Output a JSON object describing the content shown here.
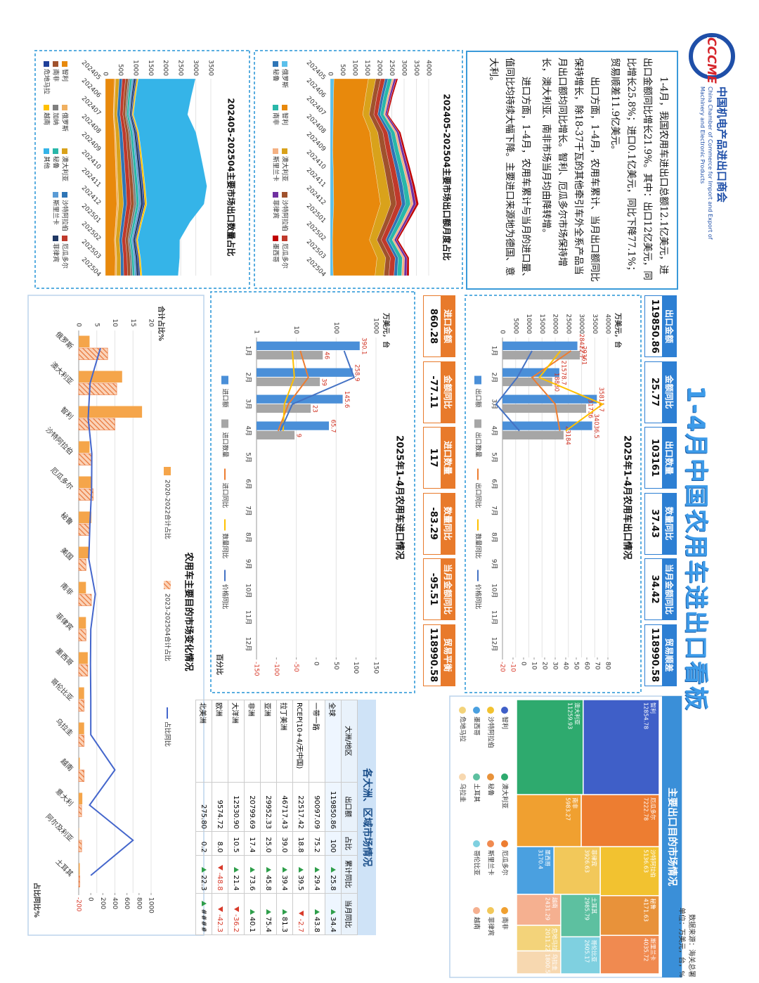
{
  "header": {
    "logo": "CCCME",
    "org_cn": "中国机电产品进出口商会",
    "org_en": "China Chamber of Commerce for Import and Export of Machinery and Electronic Products",
    "title": "1-4月中国农用车进出口看板",
    "source": "数据来源：海关总署",
    "unit": "单位：万美元，台，%"
  },
  "summary": [
    "1-4月，我国农用车进出口总额12.1亿美元，进出口金额同比增长21.9%。其中：出口12亿美元，同比增长25.8%；进口0.1亿美元，同比下降77.1%；贸易顺差11.9亿美元。",
    "出口方面，1-4月，农用车累计、当月出口额同比保持增长，除18-37千瓦的其他牵引车外全系产品当月出口额均同比增长。智利、厄瓜多尔市场保持增长，澳大利亚、南非市场当月均由降转增。",
    "进口方面，1-4月，农用车累计与当月的进口量、值同比均持续大幅下降。主要进口来源地为德国、意大利。"
  ],
  "export_kpis": [
    {
      "label": "出口金额",
      "value": 119850.86
    },
    {
      "label": "金额同比",
      "value": 25.77
    },
    {
      "label": "出口数量",
      "value": 103161
    },
    {
      "label": "数量同比",
      "value": 37.43
    },
    {
      "label": "当月金额同比",
      "value": 34.42
    },
    {
      "label": "贸易顺差",
      "value": 118990.58
    }
  ],
  "import_kpis": [
    {
      "label": "进口金额",
      "value": 860.28
    },
    {
      "label": "金额同比",
      "value": -77.11
    },
    {
      "label": "进口数量",
      "value": 117
    },
    {
      "label": "数量同比",
      "value": -83.29
    },
    {
      "label": "当月金额同比",
      "value": -95.51
    },
    {
      "label": "贸易平衡",
      "value": 118990.58
    }
  ],
  "region_table": {
    "title": "各大洲、区域市场情况",
    "columns": [
      "大洲/地区",
      "出口额",
      "占比",
      "累计同比",
      "当月同比"
    ],
    "rows": [
      [
        "全球",
        "119850.86",
        "100",
        "25.8",
        "34.4"
      ],
      [
        "一带一路",
        "90097.09",
        "75.2",
        "29.4",
        "43.8"
      ],
      [
        "RCEP(10+4/无中国)",
        "22517.42",
        "18.8",
        "39.5",
        "-2.7"
      ],
      [
        "拉丁美洲",
        "46717.43",
        "39.0",
        "39.4",
        "81.3"
      ],
      [
        "亚洲",
        "29952.33",
        "25.0",
        "45.8",
        "75.4"
      ],
      [
        "非洲",
        "20799.69",
        "17.4",
        "73.6",
        "40.1"
      ],
      [
        "大洋洲",
        "12530.90",
        "10.5",
        "21.4",
        "-36.2"
      ],
      [
        "欧洲",
        "9574.72",
        "8.0",
        "-48.8",
        "-42.3"
      ],
      [
        "北美洲",
        "275.80",
        "0.2",
        "22.3",
        "####"
      ]
    ]
  },
  "chart_data": [
    {
      "type": "combo",
      "title": "2025年1-4月农用车出口情况",
      "y_label": "万美元，台",
      "categories": [
        "1月",
        "2月",
        "3月",
        "4月",
        "5月",
        "6月",
        "7月",
        "8月",
        "9月",
        "10月",
        "11月",
        "12月"
      ],
      "ylim": [
        0,
        40000
      ],
      "yticks": [
        0,
        5000,
        10000,
        15000,
        20000,
        25000,
        30000,
        35000,
        40000
      ],
      "y2lim": [
        -20,
        80
      ],
      "y2ticks": [
        -20,
        -10,
        0,
        10,
        20,
        30,
        40,
        50,
        60,
        70,
        80
      ],
      "series": [
        {
          "name": "出口额",
          "kind": "bar",
          "labels": true,
          "color": "#4a8fd8",
          "values": [
            28422.7,
            21578.7,
            35811.7,
            34036.5,
            null,
            null,
            null,
            null,
            null,
            null,
            null,
            null
          ]
        },
        {
          "name": "出口数量",
          "kind": "bar",
          "labels": true,
          "color": "#a6a6a6",
          "values": [
            29361,
            18880,
            31736,
            23184,
            null,
            null,
            null,
            null,
            null,
            null,
            null,
            null
          ]
        },
        {
          "name": "出口同比",
          "kind": "line",
          "axis": "y2",
          "color": "#ed7d31",
          "values": [
            45,
            8,
            30,
            34.42,
            null,
            null,
            null,
            null,
            null,
            null,
            null,
            null
          ]
        },
        {
          "name": "数量同比",
          "kind": "line",
          "axis": "y2",
          "color": "#ffc000",
          "values": [
            35,
            15,
            75,
            40,
            null,
            null,
            null,
            null,
            null,
            null,
            null,
            null
          ]
        },
        {
          "name": "价格同比",
          "kind": "line",
          "axis": "y2",
          "color": "#4472c4",
          "values": [
            8,
            -6,
            -26,
            -4,
            null,
            null,
            null,
            null,
            null,
            null,
            null,
            null
          ]
        }
      ]
    },
    {
      "type": "combo",
      "title": "2025年1-4月农用车进口情况",
      "y_label": "万美元，台",
      "y2_label": "百分比",
      "log": true,
      "categories": [
        "1月",
        "2月",
        "3月",
        "4月",
        "5月",
        "6月",
        "7月",
        "8月",
        "9月",
        "10月",
        "11月",
        "12月"
      ],
      "ylim": [
        1,
        1000
      ],
      "yticks": [
        1,
        10,
        100,
        1000
      ],
      "y2lim": [
        -150,
        150
      ],
      "y2ticks": [
        -150,
        -100,
        -50,
        0,
        50,
        100,
        150
      ],
      "series": [
        {
          "name": "进口额",
          "kind": "bar",
          "labels": true,
          "color": "#4a8fd8",
          "values": [
            390.1,
            258.9,
            145.6,
            65.7,
            null,
            null,
            null,
            null,
            null,
            null,
            null,
            null
          ]
        },
        {
          "name": "进口数量",
          "kind": "bar",
          "labels": true,
          "color": "#a6a6a6",
          "values": [
            46,
            39,
            23,
            9,
            null,
            null,
            null,
            null,
            null,
            null,
            null,
            null
          ]
        },
        {
          "name": "进口同比",
          "kind": "line",
          "axis": "y2",
          "color": "#ed7d31",
          "values": [
            -40,
            -20,
            -70,
            -95.51,
            null,
            null,
            null,
            null,
            null,
            null,
            null,
            null
          ]
        },
        {
          "name": "数量同比",
          "kind": "line",
          "axis": "y2",
          "color": "#ffc000",
          "values": [
            -60,
            -55,
            -80,
            -83.29,
            null,
            null,
            null,
            null,
            null,
            null,
            null,
            null
          ]
        },
        {
          "name": "价格同比",
          "kind": "line",
          "axis": "y2",
          "color": "#4472c4",
          "values": [
            70,
            95,
            -60,
            -90,
            null,
            null,
            null,
            null,
            null,
            null,
            null,
            null
          ]
        }
      ]
    },
    {
      "type": "area",
      "title": "202405-202504主要市场出口额月度占比",
      "categories": [
        "202405",
        "202406",
        "202407",
        "202408",
        "202409",
        "202410",
        "202411",
        "202412",
        "202501",
        "202502",
        "202503",
        "202504"
      ],
      "ylim": [
        0,
        4000
      ],
      "yticks": [
        0,
        500,
        1000,
        1500,
        2000,
        2500,
        3000,
        3500,
        4000
      ],
      "series": [
        {
          "name": "俄罗斯",
          "color": "#5bc0eb",
          "values": [
            150,
            130,
            120,
            110,
            100,
            120,
            130,
            140,
            110,
            90,
            100,
            120
          ]
        },
        {
          "name": "智利",
          "color": "#e8890c",
          "values": [
            1400,
            1300,
            1200,
            1500,
            1600,
            1700,
            1800,
            1900,
            1700,
            1500,
            1800,
            1700
          ]
        },
        {
          "name": "澳大利亚",
          "color": "#d9a21b",
          "values": [
            300,
            280,
            260,
            320,
            350,
            380,
            400,
            420,
            380,
            300,
            350,
            360
          ]
        },
        {
          "name": "沙特阿拉伯",
          "color": "#a0522d",
          "values": [
            200,
            180,
            190,
            210,
            220,
            230,
            240,
            220,
            200,
            180,
            190,
            200
          ]
        },
        {
          "name": "厄瓜多尔",
          "color": "#c0392b",
          "values": [
            180,
            170,
            160,
            190,
            200,
            210,
            220,
            230,
            210,
            190,
            200,
            210
          ]
        },
        {
          "name": "秘鲁",
          "color": "#2e75b6",
          "values": [
            120,
            110,
            100,
            130,
            140,
            150,
            160,
            150,
            130,
            110,
            120,
            130
          ]
        },
        {
          "name": "南非",
          "color": "#2ab7a9",
          "values": [
            160,
            150,
            140,
            160,
            170,
            180,
            190,
            200,
            180,
            150,
            170,
            180
          ]
        },
        {
          "name": "斯里兰卡",
          "color": "#f4b183",
          "values": [
            80,
            70,
            60,
            80,
            90,
            90,
            100,
            110,
            90,
            80,
            90,
            100
          ]
        },
        {
          "name": "菲律宾",
          "color": "#7030a0",
          "values": [
            90,
            80,
            70,
            90,
            100,
            110,
            110,
            120,
            100,
            90,
            100,
            110
          ]
        },
        {
          "name": "墨西哥",
          "color": "#c00000",
          "values": [
            70,
            60,
            50,
            70,
            80,
            80,
            90,
            100,
            80,
            70,
            80,
            90
          ]
        }
      ]
    },
    {
      "type": "area",
      "title": "202405-202504主要市场出口数量占比",
      "categories": [
        "202405",
        "202406",
        "202407",
        "202408",
        "202409",
        "202410",
        "202411",
        "202412",
        "202501",
        "202502",
        "202503",
        "202504"
      ],
      "ylim": [
        0,
        3500
      ],
      "yticks": [
        0,
        500,
        1000,
        1500,
        2000,
        2500,
        3000,
        3500
      ],
      "series": [
        {
          "name": "智利",
          "color": "#e8890c",
          "values": [
            300,
            280,
            260,
            300,
            320,
            340,
            360,
            380,
            340,
            300,
            330,
            320
          ]
        },
        {
          "name": "俄罗斯",
          "color": "#f0b060",
          "values": [
            40,
            35,
            30,
            40,
            45,
            50,
            55,
            60,
            50,
            40,
            45,
            50
          ]
        },
        {
          "name": "澳大利亚",
          "color": "#d9a21b",
          "values": [
            120,
            110,
            100,
            120,
            130,
            140,
            150,
            160,
            140,
            120,
            130,
            140
          ]
        },
        {
          "name": "沙特阿拉伯",
          "color": "#2e75b6",
          "values": [
            100,
            90,
            95,
            105,
            110,
            115,
            120,
            110,
            100,
            90,
            95,
            100
          ]
        },
        {
          "name": "厄瓜多尔",
          "color": "#c0392b",
          "values": [
            110,
            100,
            95,
            115,
            120,
            125,
            130,
            135,
            125,
            115,
            120,
            125
          ]
        },
        {
          "name": "南非",
          "color": "#a0522d",
          "values": [
            90,
            85,
            80,
            90,
            95,
            100,
            105,
            110,
            100,
            85,
            95,
            100
          ]
        },
        {
          "name": "加纳",
          "color": "#7f7f7f",
          "values": [
            60,
            55,
            50,
            60,
            65,
            70,
            70,
            75,
            65,
            55,
            60,
            65
          ]
        },
        {
          "name": "秘鲁",
          "color": "#2ab7a9",
          "values": [
            70,
            65,
            60,
            75,
            80,
            85,
            90,
            85,
            75,
            65,
            70,
            75
          ]
        },
        {
          "name": "斯里兰卡",
          "color": "#5a9bd5",
          "values": [
            50,
            45,
            40,
            50,
            55,
            55,
            60,
            65,
            55,
            50,
            55,
            60
          ]
        },
        {
          "name": "菲律宾",
          "color": "#203864",
          "values": [
            60,
            55,
            50,
            60,
            65,
            70,
            70,
            75,
            65,
            60,
            65,
            70
          ]
        },
        {
          "name": "危地马拉",
          "color": "#1f3f99",
          "values": [
            40,
            35,
            30,
            40,
            45,
            45,
            50,
            55,
            45,
            40,
            45,
            50
          ]
        },
        {
          "name": "越南",
          "color": "#ffc000",
          "values": [
            50,
            45,
            40,
            50,
            55,
            60,
            60,
            65,
            55,
            50,
            55,
            60
          ]
        },
        {
          "name": "其他",
          "color": "#35b4e8",
          "values": [
            1900,
            1850,
            1800,
            1900,
            1950,
            2000,
            2050,
            1900,
            1600,
            1400,
            1300,
            1200
          ]
        }
      ]
    },
    {
      "type": "treemap",
      "title": "主要出口目的市场情况",
      "items": [
        {
          "name": "智利",
          "value": 12854.78,
          "color": "#3f5fc8"
        },
        {
          "name": "澳大利亚",
          "value": 11259.93,
          "color": "#2eaa6e"
        },
        {
          "name": "厄瓜多尔",
          "value": 7222.78,
          "color": "#ed7d31"
        },
        {
          "name": "南非",
          "value": 5983.27,
          "color": "#f0a030"
        },
        {
          "name": "沙特阿拉伯",
          "value": 5136.63,
          "color": "#f2c230"
        },
        {
          "name": "秘鲁",
          "value": 4171.63,
          "color": "#e8923a"
        },
        {
          "name": "斯里兰卡",
          "value": 4035.72,
          "color": "#f08a50"
        },
        {
          "name": "菲律宾",
          "value": 3926.63,
          "color": "#f2c85a"
        },
        {
          "name": "墨西哥",
          "value": 3170.4,
          "color": "#4aa0e0"
        },
        {
          "name": "土耳其",
          "value": 2985.79,
          "color": "#5dc0a0"
        },
        {
          "name": "哥伦比亚",
          "value": 2605.17,
          "color": "#7fd0e0"
        },
        {
          "name": "越南",
          "value": 2431.29,
          "color": "#f5b090"
        },
        {
          "name": "危地马拉",
          "value": 2011.22,
          "color": "#f3d37a"
        },
        {
          "name": "乌拉圭",
          "value": 1800.52,
          "color": "#f7d8b0"
        }
      ]
    },
    {
      "type": "combo",
      "title": "农用车主要目的市场变化情况",
      "y_label": "合计占比%",
      "y2_label": "占比同比%",
      "categories": [
        "俄罗斯",
        "澳大利亚",
        "智利",
        "沙特阿拉伯",
        "厄瓜多尔",
        "秘鲁",
        "美国",
        "南非",
        "菲律宾",
        "墨西哥",
        "哥伦比亚",
        "乌拉圭",
        "越南",
        "意大利",
        "阿尔及利亚",
        "土耳其"
      ],
      "ylim": [
        0,
        20
      ],
      "yticks": [
        0,
        5,
        10,
        15,
        20
      ],
      "y2lim": [
        -200,
        1000
      ],
      "y2ticks": [
        -200,
        0,
        200,
        400,
        600,
        800,
        1000
      ],
      "series": [
        {
          "name": "2020-2022合计占比",
          "kind": "bar",
          "color": "#f5a54a",
          "values": [
            3,
            12,
            17.5,
            3,
            3.5,
            3.5,
            3,
            2,
            2,
            2.5,
            1.5,
            1.5,
            0.3,
            1,
            0.1,
            0.3
          ]
        },
        {
          "name": "2023-202504合计占比",
          "kind": "bar",
          "hatch": true,
          "color": "#e8763a",
          "values": [
            8,
            10.5,
            10,
            3.5,
            4,
            3,
            2,
            3.5,
            2,
            2.5,
            1.5,
            1.5,
            1.5,
            0.8,
            0.8,
            0.3
          ]
        },
        {
          "name": "占比同比",
          "kind": "line",
          "axis": "y2",
          "color": "#4466cc",
          "values": [
            160,
            -12,
            -43,
            17,
            14,
            -14,
            -33,
            75,
            0,
            -5,
            0,
            0,
            400,
            -20,
            700,
            0
          ]
        }
      ]
    }
  ]
}
